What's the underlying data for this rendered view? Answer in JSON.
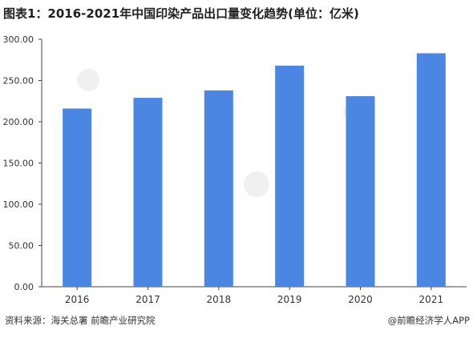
{
  "title": "图表1：2016-2021年中国印染产品出口量变化趋势(单位：亿米)",
  "source": "资料来源：海关总署 前瞻产业研究院",
  "brand": "@前瞻经济学人APP",
  "colors": {
    "bar": "#4a86e2",
    "axis": "#444444",
    "text": "#333333"
  },
  "chart_data": {
    "type": "bar",
    "title": "图表1：2016-2021年中国印染产品出口量变化趋势(单位：亿米)",
    "categories": [
      "2016",
      "2017",
      "2018",
      "2019",
      "2020",
      "2021"
    ],
    "values": [
      216,
      229,
      238,
      268,
      231,
      283
    ],
    "ylim": [
      0,
      300
    ],
    "yticks": [
      "0.00",
      "50.00",
      "100.00",
      "150.00",
      "200.00",
      "250.00",
      "300.00"
    ],
    "ytick_values": [
      0,
      50,
      100,
      150,
      200,
      250,
      300
    ],
    "grid": false,
    "legend": "none"
  }
}
